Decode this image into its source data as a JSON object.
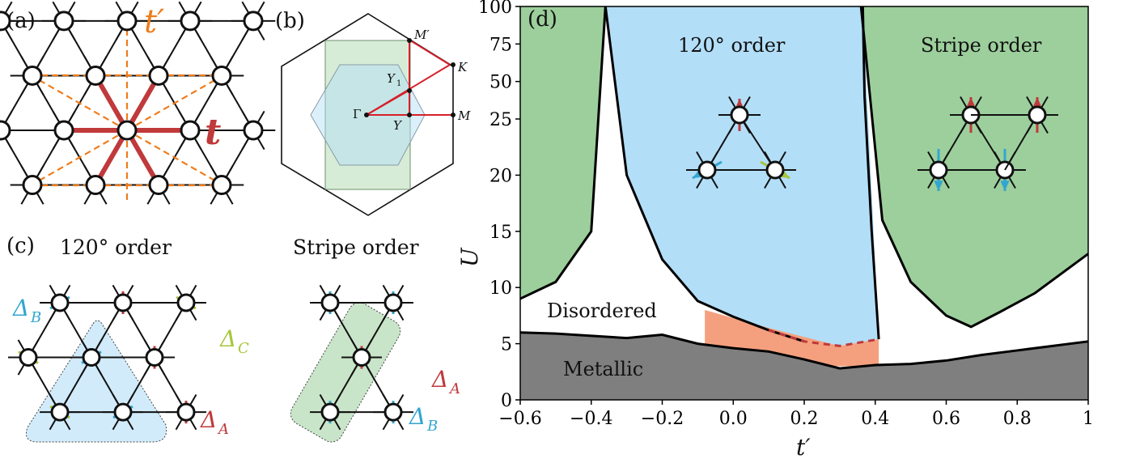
{
  "panels": {
    "a": {
      "label": "(a)",
      "t_label": "t",
      "tprime_label": "t′"
    },
    "b": {
      "label": "(b)",
      "points": {
        "Mprime": "M′",
        "K": "K",
        "Y1": "Y",
        "Y1_sub": "1",
        "Gamma": "Γ",
        "Y": "Y",
        "M": "M"
      }
    },
    "c": {
      "label": "(c)",
      "title_120": "120° order",
      "title_stripe": "Stripe order",
      "delta_A": "Δ",
      "delta_A_sub": "A",
      "delta_B": "Δ",
      "delta_B_sub": "B",
      "delta_C": "Δ",
      "delta_C_sub": "C"
    },
    "d": {
      "label": "(d)",
      "region_120": "120° order",
      "region_stripe": "Stripe order",
      "region_disordered": "Disordered",
      "region_metallic": "Metallic",
      "xlabel": "t′",
      "ylabel": "U"
    }
  },
  "colors": {
    "t_bond": "#c0393b",
    "tprime_bond": "#f07c1a",
    "spin_A": "#c0393b",
    "spin_B": "#33a6cf",
    "spin_C": "#a6c53a",
    "order120": "#b2def8",
    "stripe": "#9ccf9c",
    "metallic": "#7f7f7f",
    "transition": "#f4a07e"
  },
  "chart_data": {
    "type": "area",
    "title": "",
    "xlabel": "t′",
    "ylabel": "U",
    "xlim": [
      -0.6,
      1.0
    ],
    "ylim": [
      0,
      100
    ],
    "y_scale": "piecewise: linear 0-25, compressed 25-100",
    "x_ticks": [
      "−0.6",
      "−0.4",
      "−0.2",
      "0.0",
      "0.2",
      "0.4",
      "0.6",
      "0.8",
      "1"
    ],
    "y_ticks": [
      "0",
      "5",
      "10",
      "15",
      "20",
      "25",
      "50",
      "75",
      "100"
    ],
    "x_tick_values": [
      -0.6,
      -0.4,
      -0.2,
      0.0,
      0.2,
      0.4,
      0.6,
      0.8,
      1.0
    ],
    "y_tick_values": [
      0,
      5,
      10,
      15,
      20,
      25,
      50,
      75,
      100
    ],
    "series": [
      {
        "name": "Metallic",
        "x": [
          -0.6,
          -0.5,
          -0.4,
          -0.3,
          -0.2,
          -0.1,
          0.0,
          0.1,
          0.2,
          0.3,
          0.4,
          0.5,
          0.6,
          0.7,
          0.8,
          0.9,
          1.0
        ],
        "values": [
          6.0,
          5.9,
          5.7,
          5.5,
          5.8,
          5.0,
          4.6,
          4.3,
          3.6,
          2.8,
          3.1,
          3.2,
          3.5,
          4.0,
          4.4,
          4.8,
          5.2
        ]
      },
      {
        "name": "120° order",
        "x": [
          -0.36,
          -0.3,
          -0.2,
          -0.1,
          0.0,
          0.1,
          0.2,
          0.3,
          0.4,
          0.41
        ],
        "values": [
          100,
          20.0,
          12.5,
          8.8,
          7.4,
          6.2,
          5.2,
          4.8,
          5.3,
          5.4
        ]
      },
      {
        "name": "Stripe order",
        "x": [
          0.36,
          0.42,
          0.5,
          0.6,
          0.67,
          0.75,
          0.85,
          1.0
        ],
        "values": [
          100,
          16.0,
          10.5,
          7.5,
          6.5,
          7.8,
          9.5,
          13.0
        ]
      },
      {
        "name": "Stripe order",
        "x": [
          -0.6,
          -0.5,
          -0.4,
          -0.36
        ],
        "values": [
          9.0,
          10.5,
          15.0,
          100
        ]
      }
    ]
  }
}
